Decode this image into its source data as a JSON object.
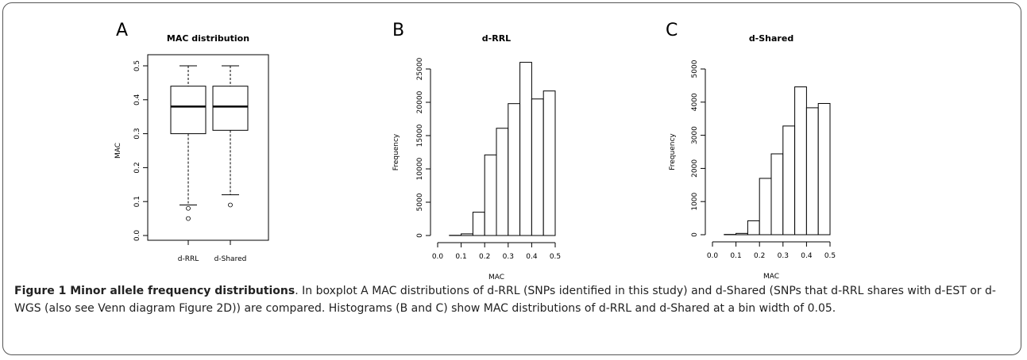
{
  "panel_letters": [
    "A",
    "B",
    "C"
  ],
  "caption": {
    "bold": "Figure 1 Minor allele frequency distributions",
    "text": ". In boxplot A MAC distributions of d-RRL (SNPs identified in this study) and d-Shared (SNPs that d-RRL shares with d-EST or d-WGS (also see Venn diagram Figure 2D)) are compared. Histograms (B and C) show MAC distributions of d-RRL and d-Shared at a bin width of 0.05."
  },
  "chart_data": [
    {
      "type": "boxplot",
      "title": "MAC distribution",
      "xlabel": "",
      "ylabel": "MAC",
      "ylim": [
        0,
        0.5
      ],
      "yticks": [
        "0.0",
        "0.1",
        "0.2",
        "0.3",
        "0.4",
        "0.5"
      ],
      "categories": [
        "d-RRL",
        "d-Shared"
      ],
      "boxes": [
        {
          "whisker_low": 0.09,
          "q1": 0.3,
          "median": 0.38,
          "q3": 0.44,
          "whisker_high": 0.5,
          "outliers": [
            0.08,
            0.05
          ]
        },
        {
          "whisker_low": 0.12,
          "q1": 0.31,
          "median": 0.38,
          "q3": 0.44,
          "whisker_high": 0.5,
          "outliers": [
            0.09
          ]
        }
      ]
    },
    {
      "type": "histogram",
      "title": "d-RRL",
      "xlabel": "MAC",
      "ylabel": "Frequency",
      "xlim": [
        0,
        0.5
      ],
      "ylim": [
        0,
        25000
      ],
      "xticks": [
        "0.0",
        "0.1",
        "0.2",
        "0.3",
        "0.4",
        "0.5"
      ],
      "yticks": [
        "0",
        "5000",
        "10000",
        "15000",
        "20000",
        "25000"
      ],
      "bin_edges": [
        0.05,
        0.1,
        0.15,
        0.2,
        0.25,
        0.3,
        0.35,
        0.4,
        0.45,
        0.5
      ],
      "values": [
        30,
        250,
        3500,
        12100,
        16100,
        19800,
        26000,
        20500,
        21700
      ]
    },
    {
      "type": "histogram",
      "title": "d-Shared",
      "xlabel": "MAC",
      "ylabel": "Frequency",
      "xlim": [
        0,
        0.5
      ],
      "ylim": [
        0,
        5000
      ],
      "xticks": [
        "0.0",
        "0.1",
        "0.2",
        "0.3",
        "0.4",
        "0.5"
      ],
      "yticks": [
        "0",
        "1000",
        "2000",
        "3000",
        "4000",
        "5000"
      ],
      "bin_edges": [
        0.05,
        0.1,
        0.15,
        0.2,
        0.25,
        0.3,
        0.35,
        0.4,
        0.45,
        0.5
      ],
      "values": [
        8,
        40,
        420,
        1700,
        2440,
        3280,
        4460,
        3830,
        3960
      ]
    }
  ]
}
